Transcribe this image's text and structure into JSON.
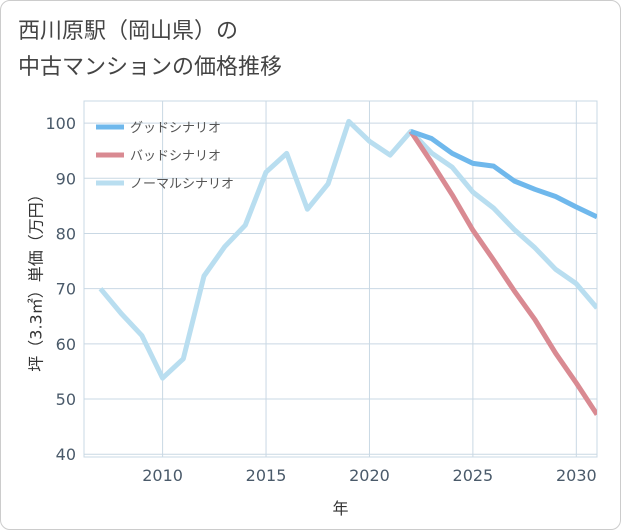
{
  "title": "西川原駅（岡山県）の\n中古マンションの価格推移",
  "chart_data": {
    "type": "line",
    "xlabel": "年",
    "ylabel": "坪（3.3㎡）単価（万円）",
    "xlim": [
      2006.2,
      2031
    ],
    "ylim": [
      39.5,
      104
    ],
    "xticks": [
      2010,
      2015,
      2020,
      2025,
      2030
    ],
    "yticks": [
      40,
      50,
      60,
      70,
      80,
      90,
      100
    ],
    "grid": true,
    "legend_position": "top-left",
    "series": [
      {
        "name": "グッドシナリオ",
        "color": "#6fb8ec",
        "x": [
          2022,
          2023,
          2024,
          2025,
          2026,
          2027,
          2028,
          2029,
          2030,
          2031
        ],
        "y": [
          98.5,
          97.2,
          94.5,
          92.7,
          92.2,
          89.5,
          88.0,
          86.7,
          84.8,
          83.0
        ]
      },
      {
        "name": "バッドシナリオ",
        "color": "#d98a92",
        "x": [
          2022,
          2023,
          2024,
          2025,
          2026,
          2027,
          2028,
          2029,
          2030,
          2031
        ],
        "y": [
          98.5,
          92.9,
          87.0,
          80.6,
          75.2,
          69.6,
          64.4,
          58.3,
          52.9,
          47.2
        ]
      },
      {
        "name": "ノーマルシナリオ",
        "color": "#b9def0",
        "x": [
          2007,
          2008,
          2009,
          2010,
          2011,
          2012,
          2013,
          2014,
          2015,
          2016,
          2017,
          2018,
          2019,
          2020,
          2021,
          2022,
          2023,
          2024,
          2025,
          2026,
          2027,
          2028,
          2029,
          2030,
          2031
        ],
        "y": [
          70.0,
          65.5,
          61.5,
          53.8,
          57.3,
          72.3,
          77.6,
          81.5,
          91.1,
          94.5,
          84.4,
          89.0,
          100.3,
          96.7,
          94.2,
          98.5,
          94.6,
          92.0,
          87.5,
          84.6,
          80.7,
          77.4,
          73.5,
          70.9,
          66.5
        ]
      }
    ]
  }
}
